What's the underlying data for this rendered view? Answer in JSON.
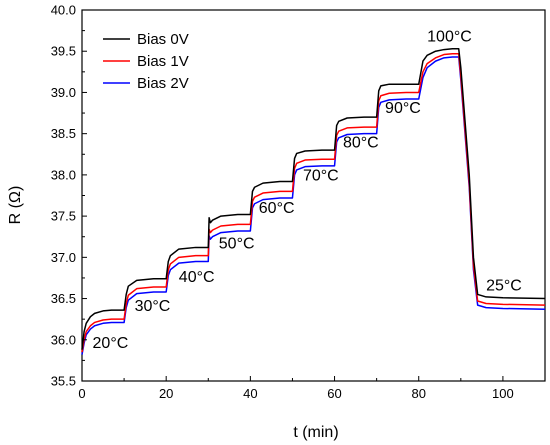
{
  "chart_data": {
    "type": "line",
    "title": "",
    "xlabel": "t (min)",
    "ylabel": "R (Ω)",
    "xlim": [
      0,
      110
    ],
    "ylim": [
      35.5,
      40.0
    ],
    "x_ticks": [
      0,
      20,
      40,
      60,
      80,
      100
    ],
    "y_ticks": [
      35.5,
      36.0,
      36.5,
      37.0,
      37.5,
      38.0,
      38.5,
      39.0,
      39.5,
      40.0
    ],
    "grid": false,
    "legend_position": "top-left",
    "series": [
      {
        "name": "Bias 0V",
        "color": "#000000",
        "x": [
          0,
          0.5,
          1,
          2,
          3,
          5,
          7,
          10,
          10.5,
          11,
          13,
          17,
          20,
          20.5,
          21,
          23,
          27,
          30,
          30.2,
          30.5,
          31,
          33,
          37,
          40,
          40.5,
          41,
          43,
          47,
          50,
          50.5,
          51,
          53,
          57,
          60,
          60.5,
          61,
          63,
          67,
          70,
          70.5,
          71,
          73,
          77,
          80,
          81,
          82,
          84,
          86,
          88,
          89.5,
          90,
          92,
          93,
          94,
          96,
          100,
          110
        ],
        "values": [
          35.88,
          36.1,
          36.2,
          36.28,
          36.32,
          36.35,
          36.36,
          36.36,
          36.55,
          36.65,
          36.72,
          36.74,
          36.74,
          36.95,
          37.02,
          37.1,
          37.12,
          37.12,
          37.48,
          37.42,
          37.45,
          37.5,
          37.52,
          37.52,
          37.8,
          37.85,
          37.9,
          37.92,
          37.92,
          38.2,
          38.26,
          38.29,
          38.3,
          38.3,
          38.6,
          38.65,
          38.69,
          38.7,
          38.7,
          39.02,
          39.08,
          39.1,
          39.1,
          39.1,
          39.38,
          39.45,
          39.5,
          39.52,
          39.53,
          39.53,
          39.3,
          38.0,
          37.0,
          36.55,
          36.52,
          36.51,
          36.5
        ]
      },
      {
        "name": "Bias 1V",
        "color": "#ff0000",
        "x": [
          0,
          0.5,
          1,
          2,
          3,
          5,
          7,
          10,
          10.5,
          11,
          13,
          17,
          20,
          20.5,
          21,
          23,
          27,
          30,
          30.2,
          30.5,
          31,
          33,
          37,
          40,
          40.5,
          41,
          43,
          47,
          50,
          50.5,
          51,
          53,
          57,
          60,
          60.5,
          61,
          63,
          67,
          70,
          70.5,
          71,
          73,
          77,
          80,
          81,
          82,
          84,
          86,
          88,
          89.5,
          90,
          92,
          93,
          94,
          96,
          100,
          110
        ],
        "values": [
          35.85,
          36.0,
          36.1,
          36.17,
          36.21,
          36.24,
          36.25,
          36.25,
          36.44,
          36.54,
          36.62,
          36.64,
          36.64,
          36.85,
          36.92,
          37.0,
          37.02,
          37.02,
          37.34,
          37.3,
          37.33,
          37.38,
          37.4,
          37.4,
          37.68,
          37.73,
          37.78,
          37.8,
          37.8,
          38.08,
          38.14,
          38.18,
          38.19,
          38.19,
          38.48,
          38.53,
          38.57,
          38.58,
          38.58,
          38.9,
          38.96,
          38.99,
          39.0,
          39.0,
          39.25,
          39.35,
          39.42,
          39.46,
          39.47,
          39.47,
          39.2,
          37.9,
          36.9,
          36.47,
          36.44,
          36.43,
          36.42
        ]
      },
      {
        "name": "Bias 2V",
        "color": "#0000ff",
        "x": [
          0,
          0.5,
          1,
          2,
          3,
          5,
          7,
          10,
          10.5,
          11,
          13,
          17,
          20,
          20.5,
          21,
          23,
          27,
          30,
          30.2,
          30.5,
          31,
          33,
          37,
          40,
          40.5,
          41,
          43,
          47,
          50,
          50.5,
          51,
          53,
          57,
          60,
          60.5,
          61,
          63,
          67,
          70,
          70.5,
          71,
          73,
          77,
          80,
          81,
          82,
          84,
          86,
          88,
          89.5,
          90,
          92,
          93,
          94,
          96,
          100,
          110
        ],
        "values": [
          35.82,
          35.96,
          36.06,
          36.13,
          36.17,
          36.2,
          36.21,
          36.21,
          36.39,
          36.48,
          36.56,
          36.58,
          36.58,
          36.78,
          36.85,
          36.93,
          36.95,
          36.95,
          37.26,
          37.22,
          37.25,
          37.3,
          37.32,
          37.32,
          37.6,
          37.65,
          37.7,
          37.72,
          37.72,
          38.0,
          38.06,
          38.1,
          38.11,
          38.11,
          38.4,
          38.45,
          38.49,
          38.5,
          38.5,
          38.82,
          38.88,
          38.91,
          38.92,
          38.92,
          39.18,
          39.3,
          39.38,
          39.42,
          39.43,
          39.43,
          39.15,
          37.85,
          36.85,
          36.42,
          36.39,
          36.38,
          36.37
        ]
      }
    ],
    "annotations": [
      {
        "text": "20°C",
        "x": 2.5,
        "y": 35.9
      },
      {
        "text": "30°C",
        "x": 12.5,
        "y": 36.35
      },
      {
        "text": "40°C",
        "x": 23,
        "y": 36.7
      },
      {
        "text": "50°C",
        "x": 32.5,
        "y": 37.11
      },
      {
        "text": "60°C",
        "x": 42,
        "y": 37.54
      },
      {
        "text": "70°C",
        "x": 52.5,
        "y": 37.93
      },
      {
        "text": "80°C",
        "x": 62,
        "y": 38.33
      },
      {
        "text": "90°C",
        "x": 72,
        "y": 38.75
      },
      {
        "text": "100°C",
        "x": 82,
        "y": 39.62
      },
      {
        "text": "25°C",
        "x": 96,
        "y": 36.6
      }
    ]
  }
}
